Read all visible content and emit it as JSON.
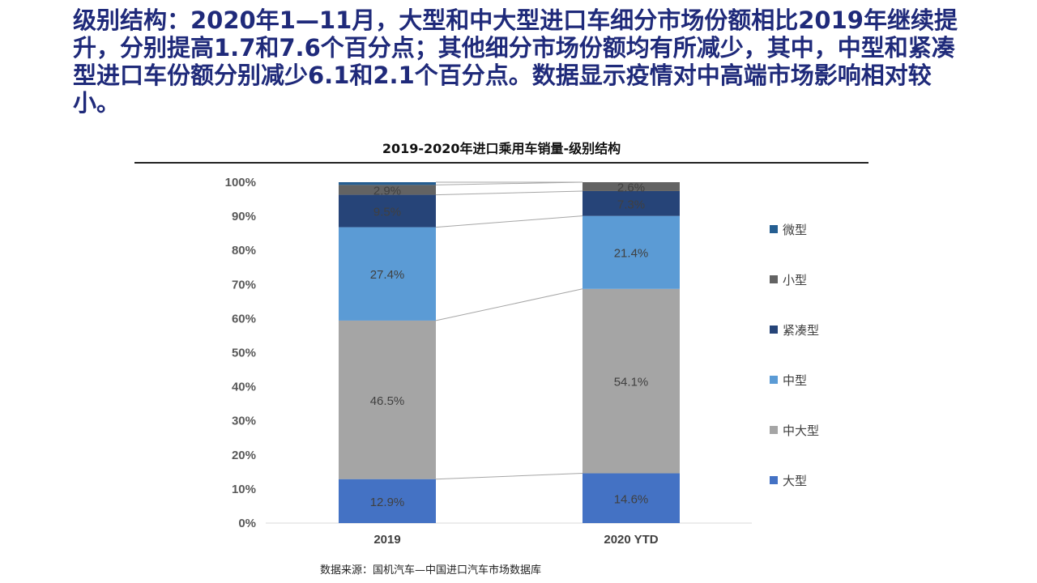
{
  "headline": "级别结构：2020年1—11月，大型和中大型进口车细分市场份额相比2019年继续提升，分别提高1.7和7.6个百分点；其他细分市场份额均有所减少，其中，中型和紧凑型进口车份额分别减少6.1和2.1个百分点。数据显示疫情对中高端市场影响相对较小。",
  "source": "数据来源：国机汽车—中国进口汽车市场数据库",
  "chart_data": {
    "type": "bar",
    "stacked": true,
    "title": "2019-2020年进口乘用车销量-级别结构",
    "categories": [
      "2019",
      "2020 YTD"
    ],
    "yticks": [
      "0%",
      "10%",
      "20%",
      "30%",
      "40%",
      "50%",
      "60%",
      "70%",
      "80%",
      "90%",
      "100%"
    ],
    "ylim": [
      0,
      100
    ],
    "legend_position": "right",
    "series": [
      {
        "name": "大型",
        "color": "#4472c4",
        "values": [
          12.9,
          14.6
        ],
        "labels": [
          "12.9%",
          "14.6%"
        ]
      },
      {
        "name": "中大型",
        "color": "#a5a5a5",
        "values": [
          46.5,
          54.1
        ],
        "labels": [
          "46.5%",
          "54.1%"
        ]
      },
      {
        "name": "中型",
        "color": "#5b9bd5",
        "values": [
          27.4,
          21.4
        ],
        "labels": [
          "27.4%",
          "21.4%"
        ]
      },
      {
        "name": "紧凑型",
        "color": "#264478",
        "values": [
          9.5,
          7.3
        ],
        "labels": [
          "9.5%",
          "7.3%"
        ]
      },
      {
        "name": "小型",
        "color": "#636363",
        "values": [
          2.9,
          2.6
        ],
        "labels": [
          "2.9%",
          "2.6%"
        ]
      },
      {
        "name": "微型",
        "color": "#255e91",
        "values": [
          0.8,
          0.0
        ],
        "labels": [
          "",
          ""
        ]
      }
    ]
  }
}
